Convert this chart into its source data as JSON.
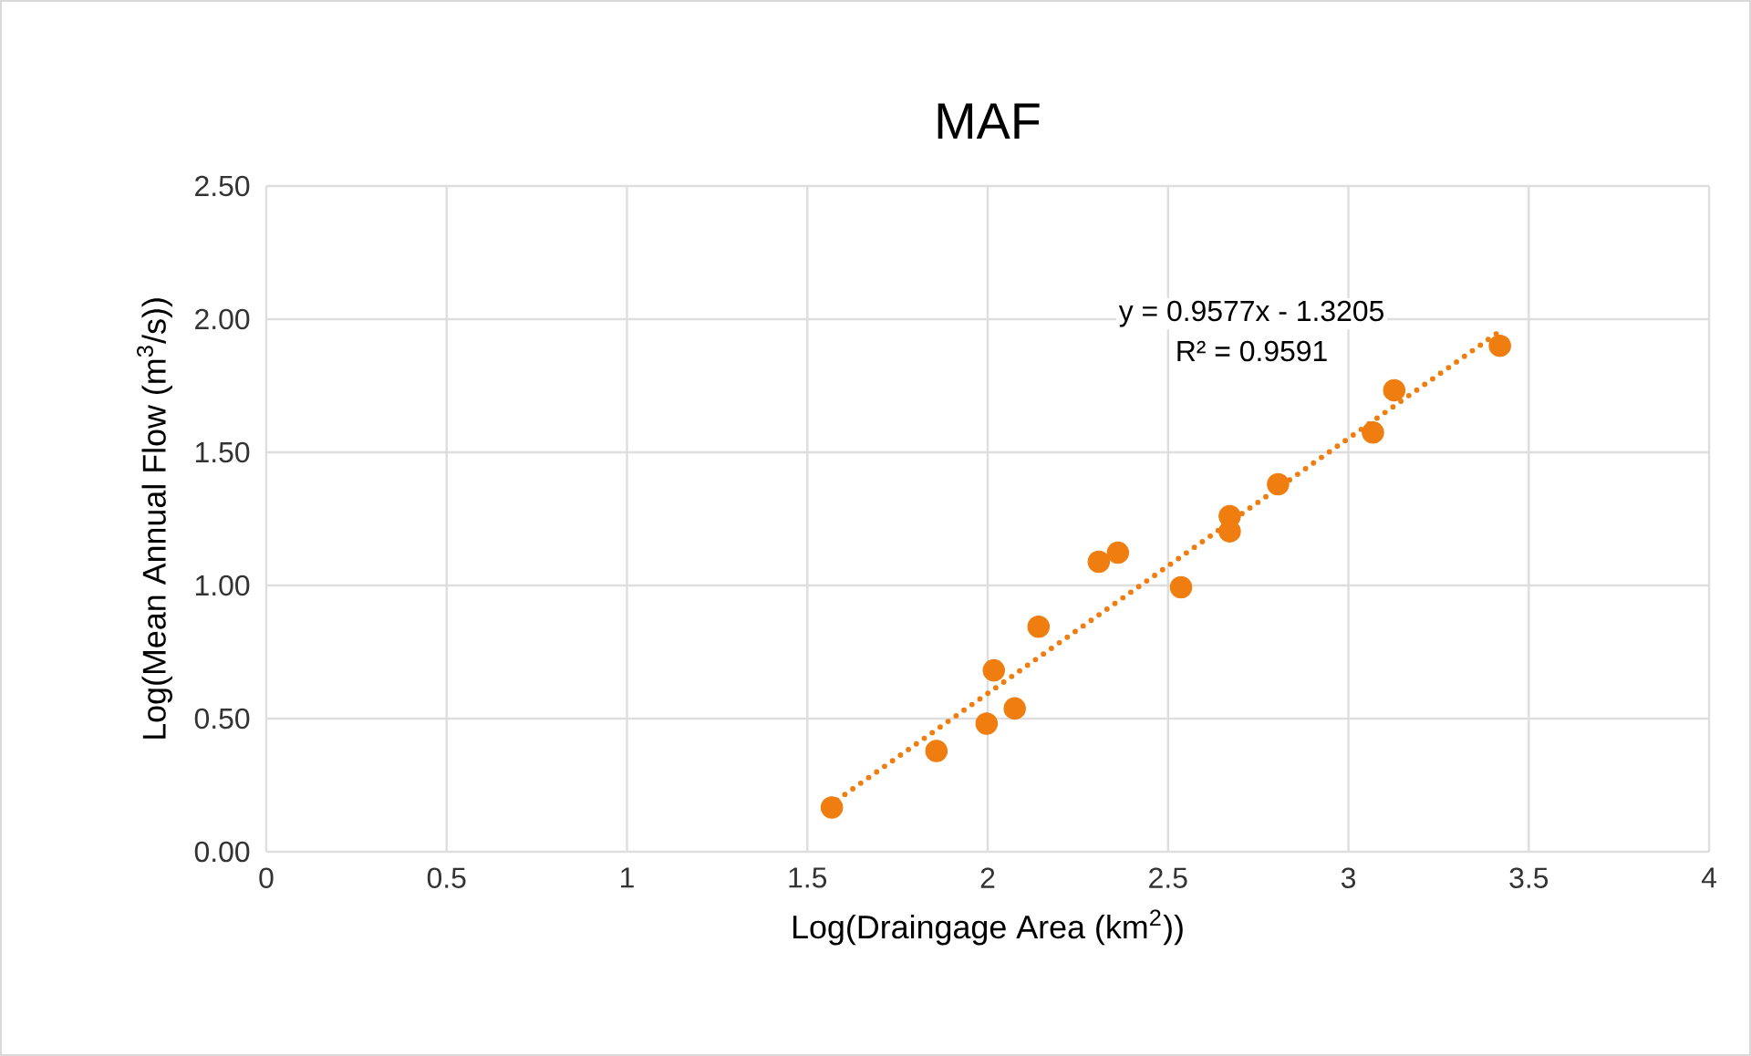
{
  "chart_data": {
    "type": "scatter",
    "title": "MAF",
    "xlabel": "Log(Draingage Area (km$^{2}$))",
    "ylabel": "Log(Mean Annual Flow (m$^{3}$/s))",
    "x": [
      1.568,
      1.858,
      1.997,
      2.017,
      2.075,
      2.141,
      2.308,
      2.361,
      2.536,
      2.671,
      2.671,
      2.805,
      3.068,
      3.127,
      3.42
    ],
    "series": [
      {
        "color": "#ef7d0f",
        "marker": "circle",
        "values": [
          0.166,
          0.378,
          0.481,
          0.681,
          0.538,
          0.845,
          1.089,
          1.123,
          0.993,
          1.26,
          1.203,
          1.38,
          1.574,
          1.733,
          1.9
        ]
      },
      {
        "type": "line",
        "color": "#ef7d0f",
        "line_style": "dotted",
        "marker": "none",
        "x": [
          1.56,
          3.43
        ],
        "values": [
          0.173,
          1.964
        ]
      }
    ],
    "annotations": [
      "y = 0.9577x - 1.3205",
      "R² = 0.9591"
    ],
    "xlim": [
      0,
      4
    ],
    "xticks": [
      0,
      0.5,
      1,
      1.5,
      2,
      2.5,
      3,
      3.5,
      4
    ],
    "ylim": [
      0,
      2.5
    ],
    "yticks": [
      {
        "value": 0,
        "label": "0.00"
      },
      {
        "value": 0.5,
        "label": "0.50"
      },
      {
        "value": 1,
        "label": "1.00"
      },
      {
        "value": 1.5,
        "label": "1.50"
      },
      {
        "value": 2,
        "label": "2.00"
      },
      {
        "value": 2.5,
        "label": "2.50"
      }
    ],
    "grid": true
  }
}
